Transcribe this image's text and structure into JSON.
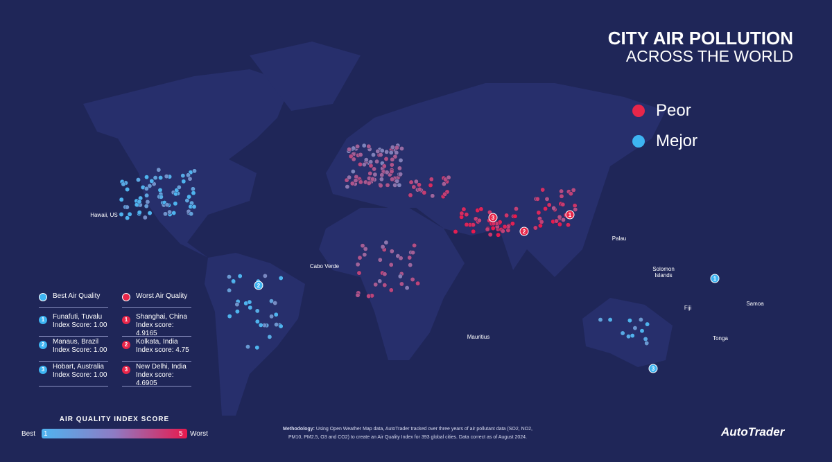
{
  "title": {
    "line1": "CITY AIR POLLUTION",
    "line2": "ACROSS THE WORLD"
  },
  "legend": {
    "worse": "Peor",
    "better": "Mejor"
  },
  "map_labels": {
    "hawaii": "Hawaii, US",
    "cabo_verde": "Cabo Verde",
    "mauritius": "Mauritius",
    "palau": "Palau",
    "solomon": "Solomon Islands",
    "fiji": "Fiji",
    "samoa": "Samoa",
    "tonga": "Tonga"
  },
  "best": {
    "heading": "Best Air Quality",
    "items": [
      {
        "rank": 1,
        "city": "Funafuti, Tuvalu",
        "score": "Index Score: 1.00"
      },
      {
        "rank": 2,
        "city": "Manaus, Brazil",
        "score": "Index Score: 1.00"
      },
      {
        "rank": 3,
        "city": "Hobart, Australia",
        "score": "Index Score: 1.00"
      }
    ]
  },
  "worst": {
    "heading": "Worst Air Quality",
    "items": [
      {
        "rank": 1,
        "city": "Shanghai, China",
        "score": "Index score: 4.9165"
      },
      {
        "rank": 2,
        "city": "Kolkata, India",
        "score": "Index score: 4.75"
      },
      {
        "rank": 3,
        "city": "New Delhi, India",
        "score": "Index score: 4.6905"
      }
    ]
  },
  "scale": {
    "title": "AIR QUALITY INDEX SCORE",
    "min_label": "Best",
    "max_label": "Worst",
    "min": 1,
    "max": 5
  },
  "methodology": {
    "label": "Methodology:",
    "text": "Using Open Weather Map data, AutoTrader tracked over three years of air pollutant data (SO2, NO2, PM10, PM2.5, O3 and CO2) to create an Air Quality Index for 393 global cities. Data correct as of August 2024."
  },
  "brand": "AutoTrader"
}
